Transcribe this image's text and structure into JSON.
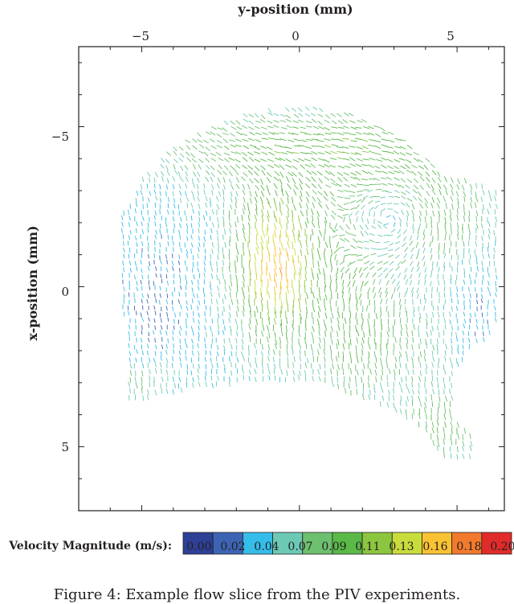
{
  "chart_data": {
    "type": "vector-field",
    "title": "",
    "xlabel": "y-position (mm)",
    "ylabel": "x-position (mm)",
    "xlim": [
      -7,
      6.5
    ],
    "ylim": [
      -7.5,
      7
    ],
    "y_axis_inverted": true,
    "x_axis_position": "top",
    "x_ticks": [
      -5,
      0,
      5
    ],
    "y_ticks": [
      -5,
      0,
      5
    ],
    "x_tick_labels": [
      "−5",
      "0",
      "5"
    ],
    "y_tick_labels": [
      "−5",
      "0",
      "5"
    ],
    "grid": false,
    "colorbar": {
      "label": "Velocity Magnitude (m/s):",
      "values": [
        "0.00",
        "0.02",
        "0.04",
        "0.07",
        "0.09",
        "0.11",
        "0.13",
        "0.16",
        "0.18",
        "0.20"
      ],
      "colors": [
        "#2e3f96",
        "#3d64b4",
        "#35bdea",
        "#6ccab4",
        "#6cc06e",
        "#5ab947",
        "#8cc63f",
        "#c8dc3c",
        "#f9c232",
        "#f27a2d",
        "#e12b2a"
      ]
    },
    "flow_regions": [
      {
        "name": "high-velocity-core",
        "y_center": -0.8,
        "x_center": -0.8,
        "magnitude": 0.2
      },
      {
        "name": "vortex",
        "y_center": 2.9,
        "x_center": -2.1,
        "magnitude": 0.02
      }
    ],
    "caption": "Figure 4: Example flow slice from the PIV experiments."
  }
}
